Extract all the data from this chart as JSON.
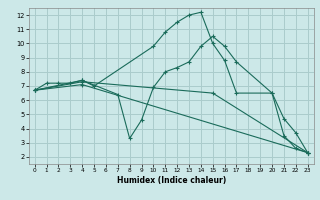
{
  "title": "",
  "xlabel": "Humidex (Indice chaleur)",
  "ylabel": "",
  "bg_color": "#cce8e8",
  "grid_color": "#aacccc",
  "line_color": "#1a6b5a",
  "xlim": [
    -0.5,
    23.5
  ],
  "ylim": [
    1.5,
    12.5
  ],
  "xticks": [
    0,
    1,
    2,
    3,
    4,
    5,
    6,
    7,
    8,
    9,
    10,
    11,
    12,
    13,
    14,
    15,
    16,
    17,
    18,
    19,
    20,
    21,
    22,
    23
  ],
  "yticks": [
    2,
    3,
    4,
    5,
    6,
    7,
    8,
    9,
    10,
    11,
    12
  ],
  "series": [
    {
      "x": [
        0,
        1,
        2,
        3,
        4,
        5,
        10,
        11,
        12,
        13,
        14,
        15,
        16,
        17,
        20,
        21,
        22,
        23
      ],
      "y": [
        6.7,
        7.2,
        7.2,
        7.2,
        7.4,
        7.0,
        9.8,
        10.8,
        11.5,
        12.0,
        12.2,
        10.0,
        8.8,
        6.5,
        6.5,
        3.5,
        2.6,
        2.3
      ]
    },
    {
      "x": [
        0,
        4,
        15,
        23
      ],
      "y": [
        6.7,
        7.3,
        6.5,
        2.3
      ]
    },
    {
      "x": [
        0,
        4,
        23
      ],
      "y": [
        6.7,
        7.1,
        2.3
      ]
    },
    {
      "x": [
        0,
        4,
        7,
        8,
        9,
        10,
        11,
        12,
        13,
        14,
        15,
        16,
        17,
        20,
        21,
        22,
        23
      ],
      "y": [
        6.7,
        7.4,
        6.4,
        3.3,
        4.6,
        6.9,
        8.0,
        8.3,
        8.7,
        9.8,
        10.5,
        9.8,
        8.7,
        6.5,
        4.7,
        3.7,
        2.3
      ]
    }
  ]
}
